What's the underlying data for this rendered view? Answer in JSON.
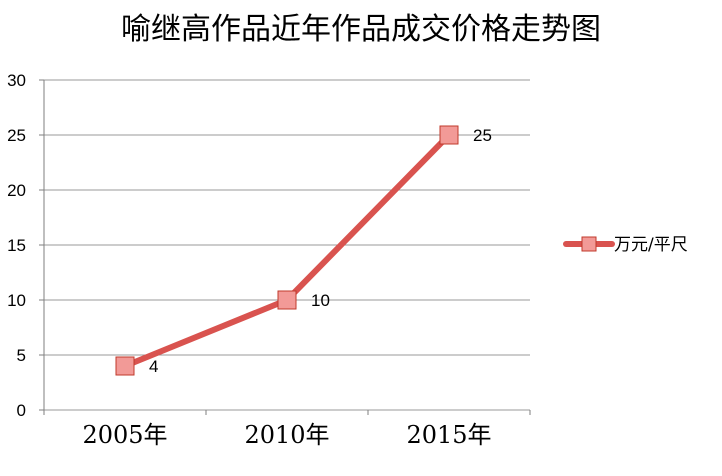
{
  "chart_data": {
    "type": "line",
    "title": "喻继高作品近年作品成交价格走势图",
    "categories": [
      "2005年",
      "2010年",
      "2015年"
    ],
    "series": [
      {
        "name": "万元/平尺",
        "values": [
          4,
          10,
          25
        ],
        "color": "#d9534f",
        "marker": "square"
      }
    ],
    "data_labels": [
      "4",
      "10",
      "25"
    ],
    "ylim": [
      0,
      30
    ],
    "yticks": [
      0,
      5,
      10,
      15,
      20,
      25,
      30
    ],
    "grid": true,
    "legend_position": "right",
    "colors": {
      "line": "#d9534f",
      "marker_fill": "#f29a97",
      "marker_stroke": "#c0392b",
      "grid": "#9a9a9a",
      "axis": "#7f7f7f"
    }
  }
}
